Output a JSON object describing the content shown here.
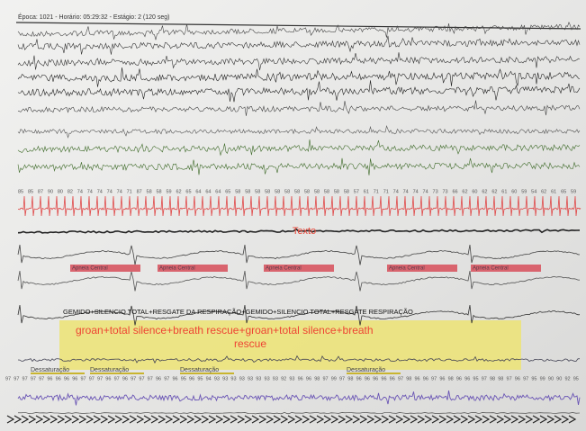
{
  "header": {
    "title": "Época: 1021 - Horário: 05:29:32 - Estágio: 2 (120 seg)"
  },
  "heart_rate_labels": [
    85,
    85,
    87,
    90,
    80,
    82,
    74,
    74,
    74,
    74,
    74,
    71,
    87,
    58,
    58,
    59,
    62,
    65,
    64,
    64,
    64,
    65,
    58,
    58,
    58,
    58,
    58,
    58,
    58,
    58,
    58,
    58,
    58,
    58,
    57,
    61,
    71,
    71,
    74,
    74,
    74,
    74,
    73,
    73,
    66,
    62,
    60,
    62,
    62,
    61,
    60,
    59,
    54,
    62,
    61,
    65,
    59
  ],
  "ecg_annotation": "Texto",
  "events": [
    "Apneia Central",
    "Apneia Central",
    "Apneia Central",
    "Apneia Central",
    "Apneia Central"
  ],
  "note": {
    "portuguese": "GEMIDO+SILENCIO TOTAL+RESGATE DA RESPIRAÇÃO+GEMIDO+SILENCIO TOTAL+RESGATE RESPIRAÇÃO",
    "english": "groan+total silence+breath rescue+groan+total silence+breath rescue"
  },
  "desaturation_labels": [
    "Dessaturação",
    "Dessaturação",
    "Dessaturação",
    "Dessaturação"
  ],
  "spo2_labels": [
    97,
    97,
    97,
    97,
    97,
    96,
    96,
    96,
    96,
    97,
    97,
    97,
    96,
    97,
    96,
    97,
    97,
    97,
    96,
    97,
    96,
    95,
    96,
    95,
    94,
    93,
    93,
    93,
    93,
    93,
    93,
    93,
    93,
    92,
    93,
    96,
    96,
    98,
    97,
    99,
    97,
    98,
    96,
    96,
    96,
    96,
    96,
    97,
    98,
    96,
    96,
    97,
    96,
    98,
    96,
    96,
    95,
    97,
    98,
    98,
    97,
    96,
    97,
    95,
    99,
    90,
    90,
    92,
    95
  ]
}
